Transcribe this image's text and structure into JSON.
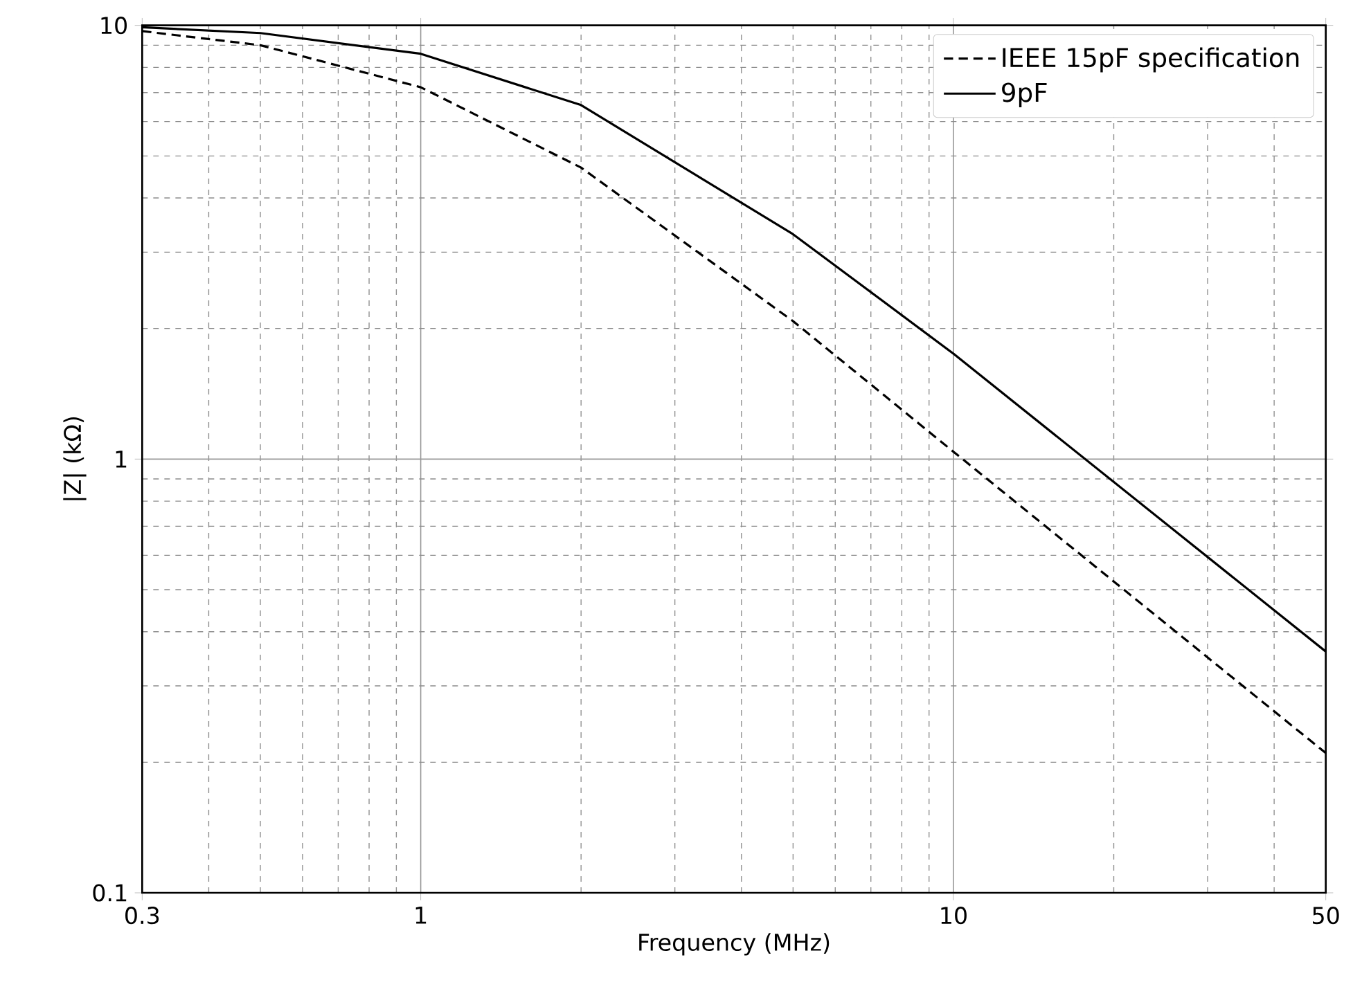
{
  "chart_data": {
    "type": "line",
    "xlabel": "Frequency (MHz)",
    "ylabel": "|Z| (kΩ)",
    "x": [
      0.3,
      0.5,
      1,
      2,
      5,
      10,
      50
    ],
    "series": [
      {
        "name": "IEEE 15pF specification",
        "color": "#000000",
        "line_style": "dashed",
        "values": [
          9.7,
          9.0,
          7.2,
          4.7,
          2.08,
          1.04,
          0.21
        ]
      },
      {
        "name": "9pF",
        "color": "#000000",
        "line_style": "solid",
        "values": [
          9.9,
          9.6,
          8.6,
          6.55,
          3.3,
          1.75,
          0.36
        ]
      }
    ],
    "xlim": [
      0.3,
      50
    ],
    "ylim": [
      0.1,
      10
    ],
    "xticks": [
      0.3,
      1,
      10,
      50
    ],
    "yticks": [
      0.1,
      1,
      10
    ],
    "log": "xy",
    "grid": true,
    "legend": "top right"
  }
}
